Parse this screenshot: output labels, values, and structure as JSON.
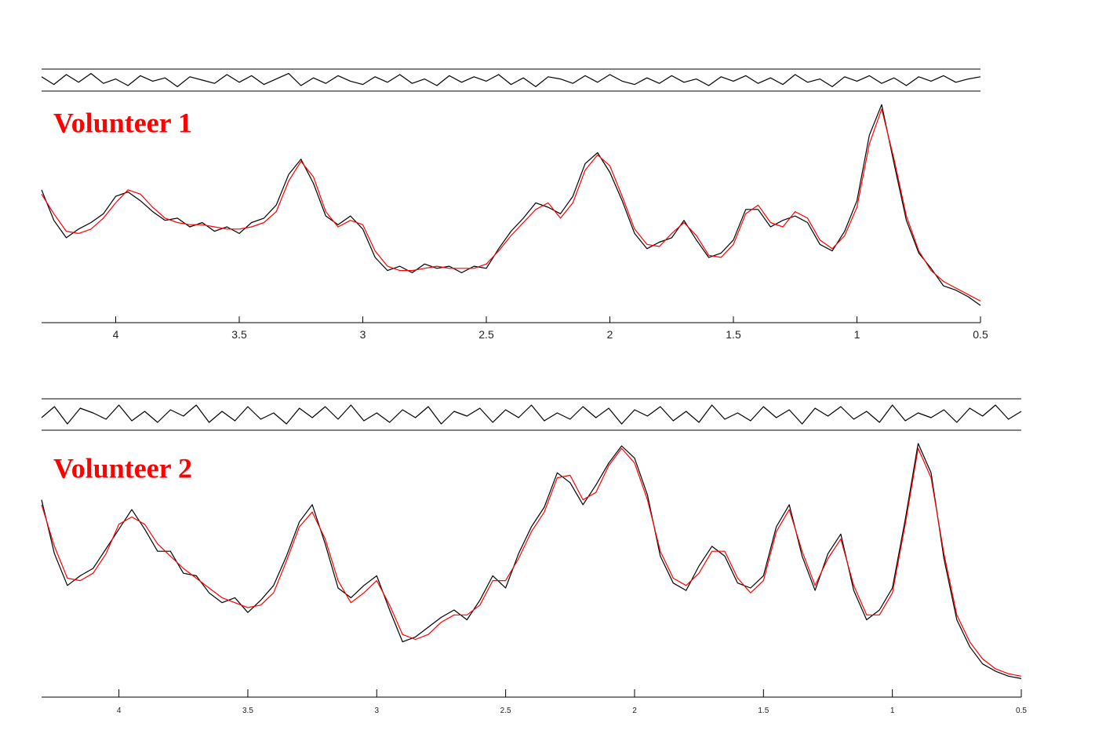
{
  "chart_data": [
    {
      "type": "line",
      "title": "Volunteer 1",
      "x": [
        4.3,
        4.25,
        4.2,
        4.15,
        4.1,
        4.05,
        4.0,
        3.95,
        3.9,
        3.85,
        3.8,
        3.75,
        3.7,
        3.65,
        3.6,
        3.55,
        3.5,
        3.45,
        3.4,
        3.35,
        3.3,
        3.25,
        3.2,
        3.15,
        3.1,
        3.05,
        3.0,
        2.95,
        2.9,
        2.85,
        2.8,
        2.75,
        2.7,
        2.65,
        2.6,
        2.55,
        2.5,
        2.45,
        2.4,
        2.35,
        2.3,
        2.25,
        2.2,
        2.15,
        2.1,
        2.05,
        2.0,
        1.95,
        1.9,
        1.85,
        1.8,
        1.75,
        1.7,
        1.65,
        1.6,
        1.55,
        1.5,
        1.45,
        1.4,
        1.35,
        1.3,
        1.25,
        1.2,
        1.15,
        1.1,
        1.05,
        1.0,
        0.95,
        0.9,
        0.85,
        0.8,
        0.75,
        0.7,
        0.65,
        0.6,
        0.55,
        0.5
      ],
      "series": [
        {
          "color": "#000000",
          "values": [
            58,
            44,
            36,
            40,
            43,
            47,
            55,
            57,
            53,
            48,
            44,
            45,
            41,
            43,
            39,
            41,
            38,
            43,
            45,
            51,
            65,
            72,
            61,
            46,
            42,
            46,
            40,
            27,
            21,
            23,
            20,
            24,
            22,
            23,
            20,
            23,
            22,
            31,
            39,
            45,
            52,
            50,
            47,
            55,
            70,
            75,
            66,
            53,
            38,
            31,
            34,
            36,
            44,
            35,
            27,
            29,
            35,
            49,
            49,
            41,
            44,
            46,
            43,
            33,
            30,
            39,
            53,
            83,
            97,
            70,
            44,
            29,
            22,
            14,
            12,
            9,
            5
          ]
        },
        {
          "color": "#ff0000",
          "values": [
            56,
            47,
            39,
            38,
            40,
            45,
            52,
            58,
            56,
            50,
            45,
            43,
            42,
            42,
            41,
            40,
            40,
            41,
            43,
            48,
            62,
            71,
            64,
            48,
            41,
            44,
            42,
            30,
            23,
            21,
            21,
            22,
            23,
            22,
            22,
            22,
            24,
            30,
            37,
            43,
            49,
            52,
            45,
            52,
            67,
            74,
            69,
            55,
            40,
            33,
            32,
            38,
            43,
            37,
            28,
            27,
            33,
            47,
            51,
            43,
            41,
            48,
            45,
            35,
            31,
            37,
            50,
            79,
            95,
            72,
            46,
            30,
            21,
            16,
            13,
            10,
            7
          ]
        },
        {
          "color": "#000000",
          "axis": "y2",
          "values": [
            3,
            -4,
            5,
            -2,
            6,
            -3,
            1,
            -5,
            4,
            -1,
            2,
            -6,
            3,
            0,
            -3,
            5,
            -2,
            4,
            -4,
            1,
            6,
            -5,
            2,
            -3,
            4,
            -1,
            -4,
            3,
            -2,
            5,
            -3,
            1,
            -5,
            4,
            -2,
            3,
            -1,
            5,
            -4,
            2,
            -6,
            3,
            1,
            -3,
            4,
            -2,
            5,
            -1,
            -4,
            2,
            -3,
            4,
            -2,
            1,
            -5,
            3,
            -1,
            4,
            -3,
            2,
            -4,
            5,
            -2,
            1,
            -6,
            3,
            -1,
            4,
            -3,
            2,
            -5,
            3,
            -1,
            4,
            -2,
            1,
            3
          ]
        }
      ],
      "xlim": [
        4.3,
        0.5
      ],
      "xticks": [
        4,
        3.5,
        3,
        2.5,
        2,
        1.5,
        1,
        0.5
      ],
      "ylim": [
        0,
        100
      ],
      "y2lim": [
        -10,
        10
      ]
    },
    {
      "type": "line",
      "title": "Volunteer 2",
      "x": [
        4.3,
        4.25,
        4.2,
        4.15,
        4.1,
        4.05,
        4.0,
        3.95,
        3.9,
        3.85,
        3.8,
        3.75,
        3.7,
        3.65,
        3.6,
        3.55,
        3.5,
        3.45,
        3.4,
        3.35,
        3.3,
        3.25,
        3.2,
        3.15,
        3.1,
        3.05,
        3.0,
        2.95,
        2.9,
        2.85,
        2.8,
        2.75,
        2.7,
        2.65,
        2.6,
        2.55,
        2.5,
        2.45,
        2.4,
        2.35,
        2.3,
        2.25,
        2.2,
        2.15,
        2.1,
        2.05,
        2.0,
        1.95,
        1.9,
        1.85,
        1.8,
        1.75,
        1.7,
        1.65,
        1.6,
        1.55,
        1.5,
        1.45,
        1.4,
        1.35,
        1.3,
        1.25,
        1.2,
        1.15,
        1.1,
        1.05,
        1.0,
        0.95,
        0.9,
        0.85,
        0.8,
        0.75,
        0.7,
        0.65,
        0.6,
        0.55,
        0.5
      ],
      "series": [
        {
          "color": "#000000",
          "values": [
            78,
            56,
            43,
            47,
            50,
            58,
            66,
            74,
            66,
            57,
            57,
            48,
            47,
            40,
            36,
            38,
            32,
            37,
            43,
            55,
            69,
            76,
            60,
            42,
            38,
            43,
            47,
            33,
            20,
            22,
            26,
            30,
            33,
            29,
            37,
            47,
            42,
            56,
            67,
            75,
            89,
            85,
            76,
            84,
            93,
            100,
            95,
            80,
            55,
            44,
            41,
            51,
            59,
            55,
            44,
            42,
            47,
            67,
            76,
            55,
            41,
            56,
            64,
            41,
            29,
            33,
            42,
            70,
            101,
            89,
            54,
            29,
            18,
            11,
            8,
            6,
            5
          ]
        },
        {
          "color": "#ff0000",
          "values": [
            76,
            59,
            46,
            45,
            48,
            56,
            68,
            71,
            68,
            60,
            55,
            50,
            46,
            42,
            38,
            36,
            34,
            35,
            40,
            53,
            67,
            73,
            62,
            45,
            36,
            40,
            45,
            35,
            23,
            21,
            23,
            28,
            31,
            31,
            35,
            45,
            45,
            54,
            65,
            73,
            87,
            88,
            78,
            81,
            92,
            99,
            93,
            78,
            57,
            46,
            43,
            48,
            57,
            57,
            46,
            40,
            45,
            65,
            74,
            57,
            43,
            54,
            62,
            43,
            31,
            31,
            40,
            68,
            99,
            87,
            56,
            31,
            20,
            13,
            9,
            7,
            6
          ]
        },
        {
          "color": "#000000",
          "axis": "y2",
          "values": [
            -2,
            5,
            -6,
            4,
            1,
            -3,
            6,
            -4,
            2,
            -5,
            3,
            -1,
            6,
            -5,
            2,
            -4,
            5,
            -3,
            1,
            -6,
            4,
            -2,
            5,
            -3,
            6,
            -4,
            1,
            -5,
            3,
            -2,
            5,
            -6,
            2,
            -1,
            4,
            -5,
            3,
            -2,
            6,
            -4,
            1,
            -3,
            5,
            -2,
            4,
            -6,
            3,
            -1,
            5,
            -4,
            2,
            -5,
            6,
            -3,
            1,
            -4,
            5,
            -2,
            3,
            -6,
            4,
            -1,
            5,
            -3,
            2,
            -5,
            6,
            -4,
            1,
            -2,
            3,
            -5,
            4,
            -1,
            6,
            -3,
            2
          ]
        }
      ],
      "xlim": [
        4.3,
        0.5
      ],
      "xticks": [
        4,
        3.5,
        3,
        2.5,
        2,
        1.5,
        1,
        0.5
      ],
      "ylim": [
        0,
        100
      ],
      "y2lim": [
        -10,
        10
      ]
    }
  ]
}
